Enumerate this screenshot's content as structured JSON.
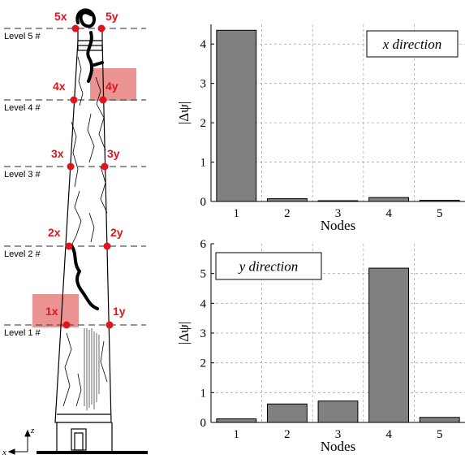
{
  "tower": {
    "levels": [
      {
        "label": "Level 5 #"
      },
      {
        "label": "Level 4 #"
      },
      {
        "label": "Level 3 #"
      },
      {
        "label": "Level 2 #"
      },
      {
        "label": "Level 1 #"
      }
    ],
    "nodes": [
      {
        "x_label": "5x",
        "y_label": "5y"
      },
      {
        "x_label": "4x",
        "y_label": "4y"
      },
      {
        "x_label": "3x",
        "y_label": "3y"
      },
      {
        "x_label": "2x",
        "y_label": "2y"
      },
      {
        "x_label": "1x",
        "y_label": "1y"
      }
    ],
    "axis_z": "z",
    "axis_x": "x",
    "colors": {
      "node": "#e0141b",
      "highlight": "#e88080",
      "crack": "#000000"
    }
  },
  "chart_data": [
    {
      "type": "bar",
      "legend": "x direction",
      "categories": [
        "1",
        "2",
        "3",
        "4",
        "5"
      ],
      "values": [
        4.35,
        0.07,
        0.02,
        0.1,
        0.03
      ],
      "xlabel": "Nodes",
      "ylabel": "|Δψ|",
      "ylim": [
        0,
        4.5
      ],
      "yticks": [
        "0",
        "1",
        "2",
        "3",
        "4"
      ],
      "grid": true,
      "legend_position": "top-right",
      "bar_color": "#808080"
    },
    {
      "type": "bar",
      "legend": "y direction",
      "categories": [
        "1",
        "2",
        "3",
        "4",
        "5"
      ],
      "values": [
        0.12,
        0.62,
        0.72,
        5.18,
        0.17
      ],
      "xlabel": "Nodes",
      "ylabel": "|Δψ|",
      "ylim": [
        0,
        6
      ],
      "yticks": [
        "0",
        "1",
        "2",
        "3",
        "4",
        "5",
        "6"
      ],
      "grid": true,
      "legend_position": "top-left",
      "bar_color": "#808080"
    }
  ]
}
